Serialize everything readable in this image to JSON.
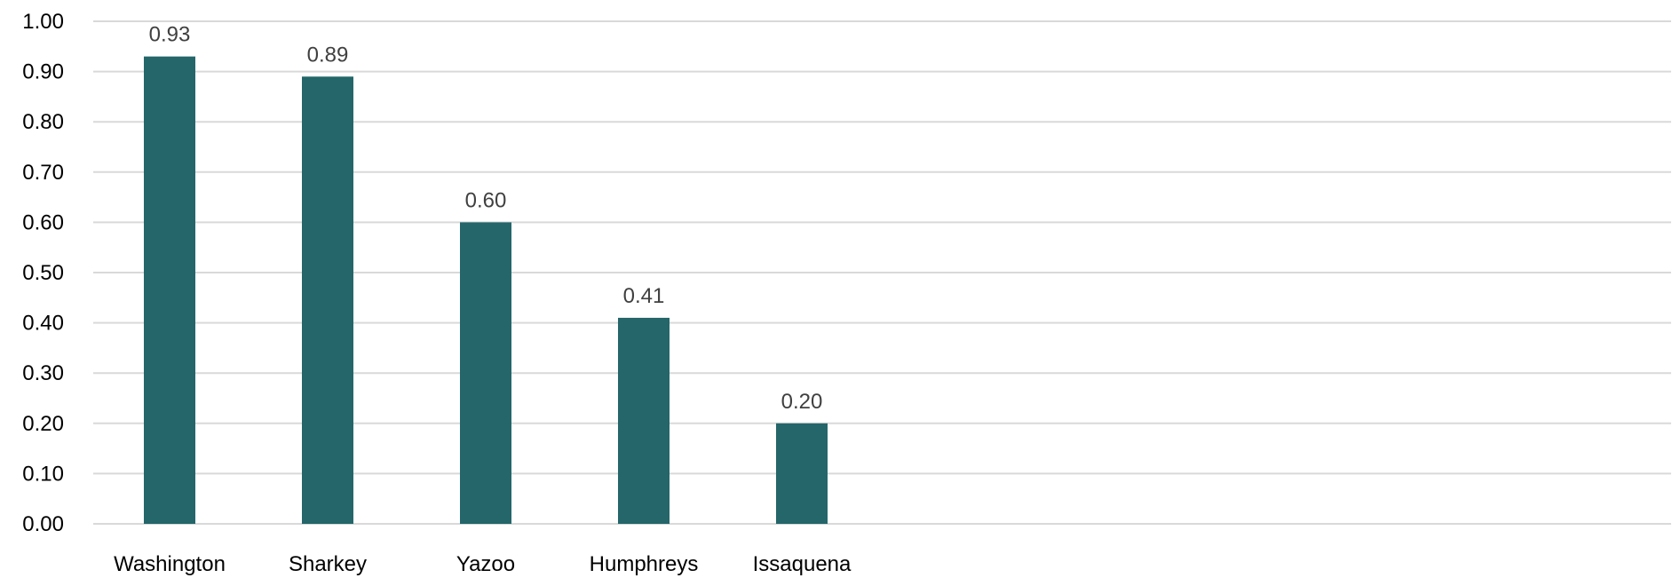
{
  "chart_data": {
    "type": "bar",
    "title": "",
    "xlabel": "",
    "ylabel": "",
    "categories": [
      "Washington",
      "Sharkey",
      "Yazoo",
      "Humphreys",
      "Issaquena"
    ],
    "values": [
      0.93,
      0.89,
      0.6,
      0.41,
      0.2
    ],
    "data_labels": [
      "0.93",
      "0.89",
      "0.60",
      "0.41",
      "0.20"
    ],
    "ylim": [
      0,
      1.0
    ],
    "yticks": [
      0.0,
      0.1,
      0.2,
      0.3,
      0.4,
      0.5,
      0.6,
      0.7,
      0.8,
      0.9,
      1.0
    ],
    "ytick_labels": [
      "0.00",
      "0.10",
      "0.20",
      "0.30",
      "0.40",
      "0.50",
      "0.60",
      "0.70",
      "0.80",
      "0.90",
      "1.00"
    ],
    "grid": true,
    "legend": "none",
    "colors": {
      "bar": "#24666A",
      "grid": "#d9d9d9",
      "data_label": "#404040"
    }
  }
}
